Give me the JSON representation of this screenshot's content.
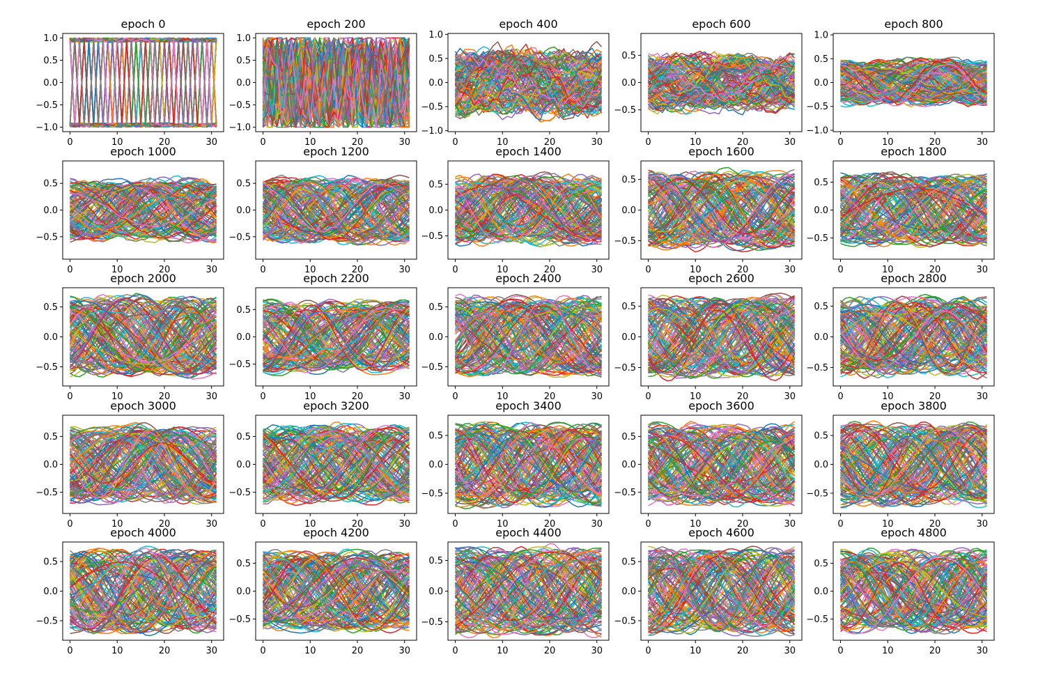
{
  "chart_data": {
    "type": "line",
    "description": "Grid of 25 line-plot subplots (5 rows x 5 cols). Each subplot overlays many series of 32 points (x = 0..31) using the default 10-color cycle; early epochs are square-wave-like between -1 and 1, later epochs become smooth sinusoid-like curves within about ±0.8.",
    "layout": {
      "rows": 5,
      "cols": 5
    },
    "color_cycle": [
      "#1f77b4",
      "#ff7f0e",
      "#2ca02c",
      "#d62728",
      "#9467bd",
      "#8c564b",
      "#e377c2",
      "#7f7f7f",
      "#bcbd22",
      "#17becf"
    ],
    "x": [
      0,
      1,
      2,
      3,
      4,
      5,
      6,
      7,
      8,
      9,
      10,
      11,
      12,
      13,
      14,
      15,
      16,
      17,
      18,
      19,
      20,
      21,
      22,
      23,
      24,
      25,
      26,
      27,
      28,
      29,
      30,
      31
    ],
    "xlim": [
      -1.55,
      32.55
    ],
    "xticks": [
      0,
      10,
      20,
      30
    ],
    "series_count_per_subplot": 128,
    "subplots": [
      {
        "title": "epoch 0",
        "ylim": [
          -1.1,
          1.1
        ],
        "yticks": [
          -1.0,
          -0.5,
          0.0,
          0.5,
          1.0
        ],
        "style": "square",
        "amplitude": 1.0,
        "smoothness": 0.0
      },
      {
        "title": "epoch 200",
        "ylim": [
          -1.1,
          1.1
        ],
        "yticks": [
          -1.0,
          -0.5,
          0.0,
          0.5,
          1.0
        ],
        "style": "noisy",
        "amplitude": 1.0,
        "smoothness": 0.15
      },
      {
        "title": "epoch 400",
        "ylim": [
          -1.02,
          1.02
        ],
        "yticks": [
          -1.0,
          -0.5,
          0.0,
          0.5,
          1.0
        ],
        "style": "jagged",
        "amplitude": 0.6,
        "smoothness": 0.5
      },
      {
        "title": "epoch 600",
        "ylim": [
          -0.9,
          0.9
        ],
        "yticks": [
          -0.5,
          0.0,
          0.5
        ],
        "style": "jagged",
        "amplitude": 0.45,
        "smoothness": 0.7
      },
      {
        "title": "epoch 800",
        "ylim": [
          -1.03,
          1.03
        ],
        "yticks": [
          -1.0,
          -0.5,
          0.0,
          0.5,
          1.0
        ],
        "style": "smooth",
        "amplitude": 0.45,
        "smoothness": 0.85
      },
      {
        "title": "epoch 1000",
        "ylim": [
          -0.92,
          0.92
        ],
        "yticks": [
          -0.5,
          0.0,
          0.5
        ],
        "style": "smooth",
        "amplitude": 0.55,
        "smoothness": 0.9
      },
      {
        "title": "epoch 1200",
        "ylim": [
          -0.92,
          0.92
        ],
        "yticks": [
          -0.5,
          0.0,
          0.5
        ],
        "style": "smooth",
        "amplitude": 0.6,
        "smoothness": 0.9
      },
      {
        "title": "epoch 1400",
        "ylim": [
          -0.95,
          0.95
        ],
        "yticks": [
          -0.5,
          0.0,
          0.5
        ],
        "style": "smooth",
        "amplitude": 0.65,
        "smoothness": 0.9
      },
      {
        "title": "epoch 1600",
        "ylim": [
          -0.8,
          0.8
        ],
        "yticks": [
          -0.5,
          0.0,
          0.5
        ],
        "style": "smooth",
        "amplitude": 0.62,
        "smoothness": 0.95
      },
      {
        "title": "epoch 1800",
        "ylim": [
          -0.88,
          0.88
        ],
        "yticks": [
          -0.5,
          0.0,
          0.5
        ],
        "style": "smooth",
        "amplitude": 0.62,
        "smoothness": 0.95
      },
      {
        "title": "epoch 2000",
        "ylim": [
          -0.82,
          0.82
        ],
        "yticks": [
          -0.5,
          0.0,
          0.5
        ],
        "style": "smooth",
        "amplitude": 0.65,
        "smoothness": 0.95
      },
      {
        "title": "epoch 2200",
        "ylim": [
          -0.9,
          0.9
        ],
        "yticks": [
          -0.5,
          0.0,
          0.5
        ],
        "style": "smooth",
        "amplitude": 0.65,
        "smoothness": 0.95
      },
      {
        "title": "epoch 2400",
        "ylim": [
          -0.82,
          0.82
        ],
        "yticks": [
          -0.5,
          0.0,
          0.5
        ],
        "style": "smooth",
        "amplitude": 0.65,
        "smoothness": 0.95
      },
      {
        "title": "epoch 2600",
        "ylim": [
          -0.8,
          0.8
        ],
        "yticks": [
          -0.5,
          0.0,
          0.5
        ],
        "style": "smooth",
        "amplitude": 0.65,
        "smoothness": 0.95
      },
      {
        "title": "epoch 2800",
        "ylim": [
          -0.8,
          0.8
        ],
        "yticks": [
          -0.5,
          0.0,
          0.5
        ],
        "style": "smooth",
        "amplitude": 0.62,
        "smoothness": 0.95
      },
      {
        "title": "epoch 3000",
        "ylim": [
          -0.88,
          0.88
        ],
        "yticks": [
          -0.5,
          0.0,
          0.5
        ],
        "style": "smooth",
        "amplitude": 0.68,
        "smoothness": 0.96
      },
      {
        "title": "epoch 3200",
        "ylim": [
          -0.88,
          0.88
        ],
        "yticks": [
          -0.5,
          0.0,
          0.5
        ],
        "style": "smooth",
        "amplitude": 0.68,
        "smoothness": 0.96
      },
      {
        "title": "epoch 3400",
        "ylim": [
          -0.85,
          0.85
        ],
        "yticks": [
          -0.5,
          0.0,
          0.5
        ],
        "style": "smooth",
        "amplitude": 0.7,
        "smoothness": 0.96
      },
      {
        "title": "epoch 3600",
        "ylim": [
          -0.88,
          0.88
        ],
        "yticks": [
          -0.5,
          0.0,
          0.5
        ],
        "style": "smooth",
        "amplitude": 0.7,
        "smoothness": 0.96
      },
      {
        "title": "epoch 3800",
        "ylim": [
          -0.85,
          0.85
        ],
        "yticks": [
          -0.5,
          0.0,
          0.5
        ],
        "style": "smooth",
        "amplitude": 0.7,
        "smoothness": 0.96
      },
      {
        "title": "epoch 4000",
        "ylim": [
          -0.83,
          0.83
        ],
        "yticks": [
          -0.5,
          0.0,
          0.5
        ],
        "style": "smooth",
        "amplitude": 0.7,
        "smoothness": 0.97
      },
      {
        "title": "epoch 4200",
        "ylim": [
          -0.88,
          0.88
        ],
        "yticks": [
          -0.5,
          0.0,
          0.5
        ],
        "style": "smooth",
        "amplitude": 0.7,
        "smoothness": 0.97
      },
      {
        "title": "epoch 4400",
        "ylim": [
          -0.8,
          0.8
        ],
        "yticks": [
          -0.5,
          0.0,
          0.5
        ],
        "style": "smooth",
        "amplitude": 0.7,
        "smoothness": 0.97
      },
      {
        "title": "epoch 4600",
        "ylim": [
          -0.83,
          0.83
        ],
        "yticks": [
          -0.5,
          0.0,
          0.5
        ],
        "style": "smooth",
        "amplitude": 0.72,
        "smoothness": 0.97
      },
      {
        "title": "epoch 4800",
        "ylim": [
          -0.88,
          0.88
        ],
        "yticks": [
          -0.5,
          0.0,
          0.5
        ],
        "style": "smooth",
        "amplitude": 0.72,
        "smoothness": 0.97
      }
    ]
  }
}
